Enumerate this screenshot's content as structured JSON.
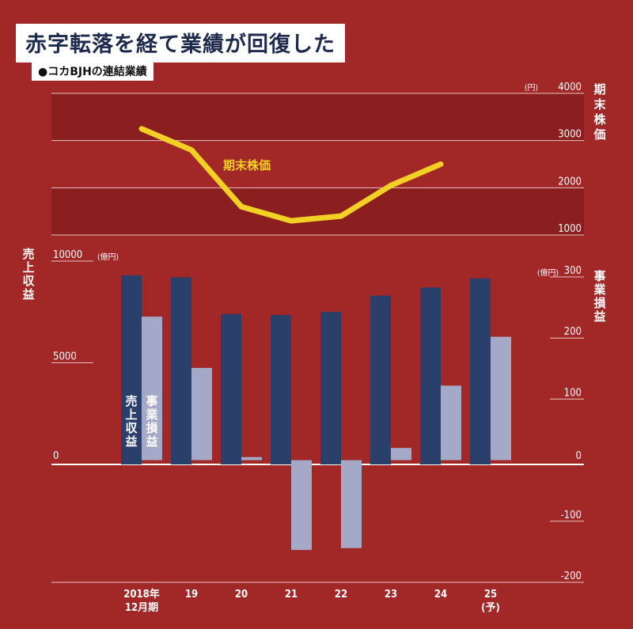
{
  "title": "赤字転落を経て業績が回復した",
  "subtitle": "●コカBJHの連結業績",
  "chart_data": [
    {
      "type": "line",
      "series": [
        {
          "name": "期末株価",
          "values": [
            3250,
            2800,
            1600,
            1300,
            1400,
            2050,
            2500
          ]
        }
      ],
      "categories": [
        "2018年12月期",
        "19",
        "20",
        "21",
        "22",
        "23",
        "24"
      ],
      "ylabel": "期末株価",
      "yunit": "(円)",
      "ylim": [
        1000,
        4000
      ],
      "yticks": [
        1000,
        2000,
        3000,
        4000
      ],
      "color": "#f2d024",
      "band_colors": [
        "#8b1e1e",
        "#a22828"
      ]
    },
    {
      "type": "bar",
      "categories": [
        "2018年\n12月期",
        "19",
        "20",
        "21",
        "22",
        "23",
        "24",
        "25(予)"
      ],
      "category_labels": [
        [
          "2018年",
          "12月期"
        ],
        [
          "19"
        ],
        [
          "20"
        ],
        [
          "21"
        ],
        [
          "22"
        ],
        [
          "23"
        ],
        [
          "24"
        ],
        [
          "25",
          "(予)"
        ]
      ],
      "series": [
        {
          "name": "売上収益",
          "axis": "left",
          "color": "#2b3f6b",
          "values": [
            9300,
            9200,
            7400,
            7350,
            7500,
            8300,
            8700,
            9150
          ]
        },
        {
          "name": "事業損益",
          "axis": "right",
          "color": "#a3a9c7",
          "values": [
            235,
            151,
            5,
            -147,
            -144,
            20,
            122,
            202
          ]
        }
      ],
      "left_axis": {
        "label": "売上収益",
        "unit": "(億円)",
        "ylim": [
          0,
          10000
        ],
        "ticks": [
          0,
          5000,
          10000
        ]
      },
      "right_axis": {
        "label": "事業損益",
        "unit": "(億円)",
        "ylim": [
          -200,
          300
        ],
        "ticks": [
          -200,
          -100,
          0,
          100,
          200,
          300
        ]
      }
    }
  ],
  "labels": {
    "line_series_label": "期末株価",
    "bar_label_revenue": "売上収益",
    "bar_label_profit": "事業損益"
  }
}
